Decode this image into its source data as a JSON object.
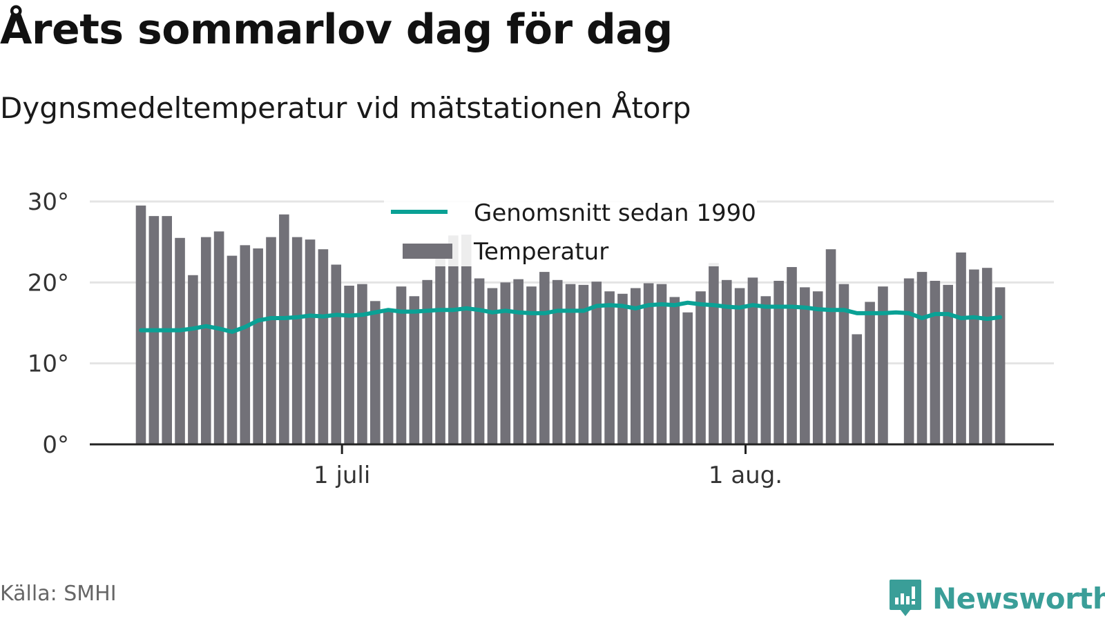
{
  "title": "Årets sommarlov dag för dag",
  "subtitle": "Dygnsmedeltemperatur vid mätstationen Åtorp",
  "source": "Källa: SMHI",
  "brand": {
    "name": "Newsworthy",
    "icon": "newsworthy-logo-icon"
  },
  "colors": {
    "bar": "#727178",
    "line": "#0aa195",
    "grid": "#e4e4e4",
    "axis": "#222222",
    "brand": "#3a9e98"
  },
  "chart_data": {
    "type": "bar",
    "title": "Årets sommarlov dag för dag",
    "subtitle": "Dygnsmedeltemperatur vid mätstationen Åtorp",
    "xlabel": "",
    "ylabel": "",
    "ylim": [
      0,
      30
    ],
    "yticks": [
      0,
      10,
      20,
      30
    ],
    "ytick_labels": [
      "0°",
      "10°",
      "20°",
      "30°"
    ],
    "xticks": [
      {
        "day_index": 16,
        "label": "1 juli"
      },
      {
        "day_index": 47,
        "label": "1 aug."
      }
    ],
    "x_start": "2019-06-15",
    "grid": true,
    "legend": {
      "position": "top-center",
      "entries": [
        "Genomsnitt sedan 1990",
        "Temperatur"
      ]
    },
    "series": [
      {
        "name": "Temperatur",
        "type": "bar",
        "values": [
          29.5,
          28.2,
          28.2,
          25.5,
          20.9,
          25.6,
          26.3,
          23.3,
          24.6,
          24.2,
          25.6,
          28.4,
          25.6,
          25.3,
          24.1,
          22.2,
          19.6,
          19.8,
          17.7,
          16.6,
          19.5,
          18.3,
          20.3,
          23.3,
          25.8,
          25.9,
          20.5,
          19.3,
          20.0,
          20.4,
          19.5,
          21.3,
          20.3,
          19.8,
          19.7,
          20.1,
          18.9,
          18.6,
          19.3,
          19.9,
          19.8,
          18.2,
          16.3,
          18.9,
          22.4,
          20.3,
          19.3,
          20.6,
          18.3,
          20.2,
          21.9,
          19.4,
          18.9,
          24.1,
          19.8,
          13.6,
          17.6,
          19.5,
          null,
          20.5,
          21.3,
          20.2,
          19.7,
          23.7,
          21.6,
          21.8,
          19.4
        ]
      },
      {
        "name": "Genomsnitt sedan 1990",
        "type": "line",
        "values": [
          14.1,
          14.1,
          14.1,
          14.1,
          14.3,
          14.6,
          14.3,
          13.9,
          14.5,
          15.3,
          15.6,
          15.6,
          15.7,
          15.9,
          15.8,
          16.0,
          15.9,
          16.0,
          16.3,
          16.6,
          16.4,
          16.4,
          16.5,
          16.6,
          16.6,
          16.8,
          16.6,
          16.3,
          16.5,
          16.3,
          16.2,
          16.2,
          16.5,
          16.5,
          16.5,
          17.1,
          17.2,
          17.1,
          16.8,
          17.2,
          17.3,
          17.2,
          17.5,
          17.3,
          17.2,
          17.0,
          16.9,
          17.2,
          17.0,
          17.0,
          17.0,
          16.9,
          16.7,
          16.6,
          16.6,
          16.2,
          16.2,
          16.2,
          16.3,
          16.2,
          15.6,
          16.1,
          16.1,
          15.6,
          15.7,
          15.5,
          15.7
        ]
      }
    ]
  }
}
